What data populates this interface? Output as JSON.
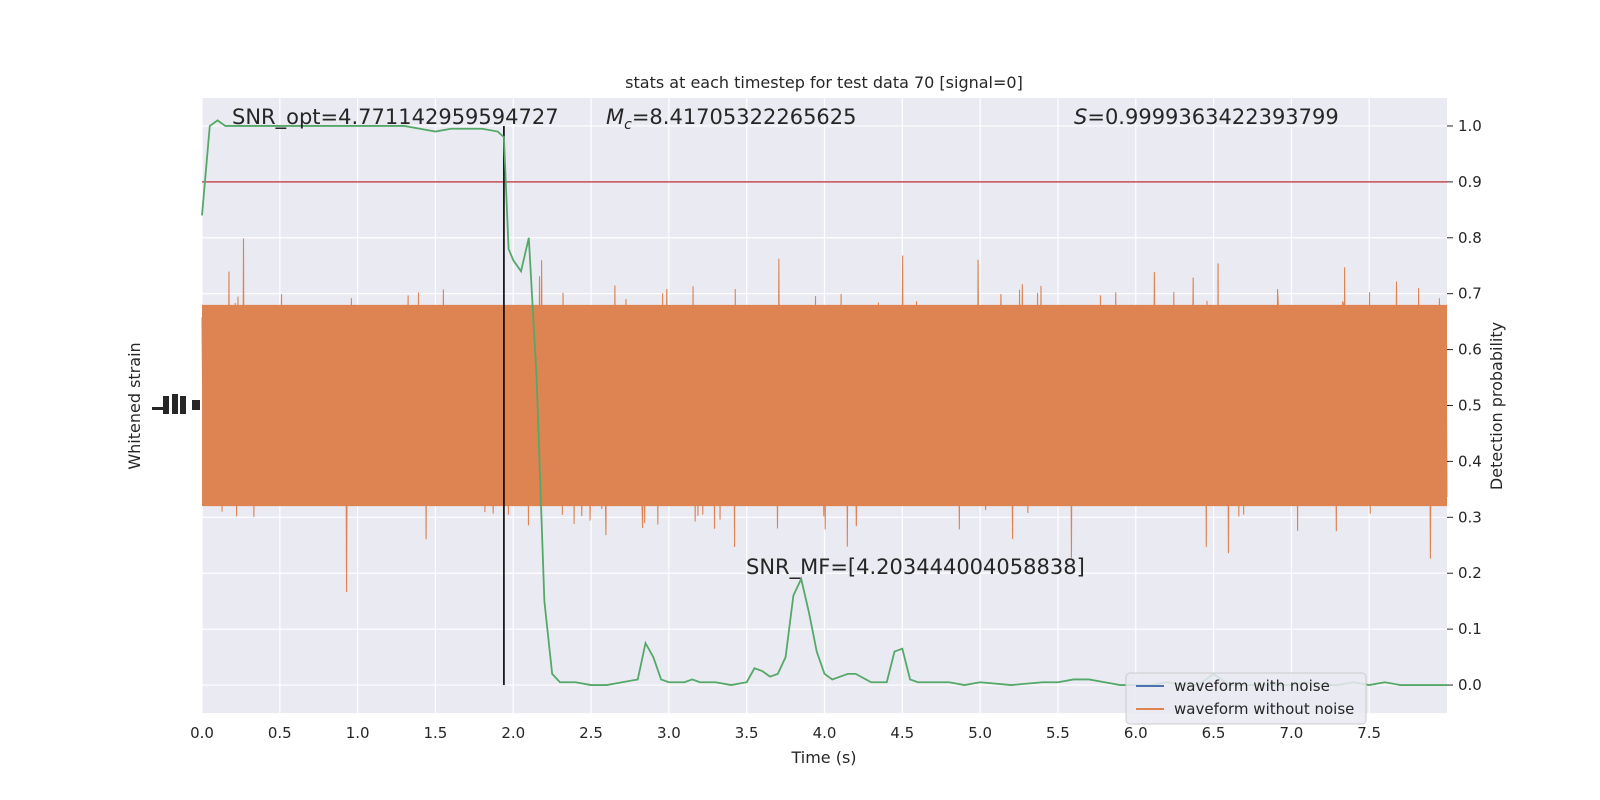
{
  "chart_data": {
    "type": "line",
    "title": "stats at each timestep for test data 70 [signal=0]",
    "xlabel": "Time (s)",
    "ylabel_left": "Whitened strain",
    "ylabel_right": "Detection probability",
    "xlim": [
      0,
      8
    ],
    "ylim_right": [
      -0.05,
      1.05
    ],
    "x_ticks": [
      "0.0",
      "0.5",
      "1.0",
      "1.5",
      "2.0",
      "2.5",
      "3.0",
      "3.5",
      "4.0",
      "4.5",
      "5.0",
      "5.5",
      "6.0",
      "6.5",
      "7.0",
      "7.5"
    ],
    "y_ticks_right": [
      "0.0",
      "0.1",
      "0.2",
      "0.3",
      "0.4",
      "0.5",
      "0.6",
      "0.7",
      "0.8",
      "0.9",
      "1.0"
    ],
    "grid": true,
    "legend_position": "lower-right",
    "legend": [
      {
        "label": "waveform with noise",
        "color": "#4c72b0"
      },
      {
        "label": "waveform without noise",
        "color": "#dd8452"
      }
    ],
    "annotations": {
      "snr_opt": "SNR_opt=4.771142959594727",
      "mc": "=8.41705322265625",
      "mc_symbol": "M",
      "mc_sub": "c",
      "s": "=0.9999363422393799",
      "s_symbol": "S",
      "snr_mf": "SNR_MF=[4.203444004058838]"
    },
    "threshold": 0.9,
    "marker_time": 1.94,
    "colors": {
      "probability": "#55a868",
      "threshold": "#c44e52",
      "marker": "#000000",
      "strain": "#dd8452"
    },
    "probability_series": {
      "name": "detection probability",
      "x": [
        0.0,
        0.05,
        0.1,
        0.15,
        0.2,
        0.25,
        0.3,
        0.35,
        0.4,
        0.5,
        0.6,
        0.7,
        0.8,
        0.9,
        1.0,
        1.1,
        1.2,
        1.3,
        1.4,
        1.5,
        1.6,
        1.7,
        1.8,
        1.9,
        1.94,
        1.97,
        2.0,
        2.05,
        2.1,
        2.15,
        2.2,
        2.25,
        2.3,
        2.35,
        2.4,
        2.5,
        2.6,
        2.7,
        2.8,
        2.85,
        2.9,
        2.95,
        3.0,
        3.05,
        3.1,
        3.15,
        3.2,
        3.3,
        3.4,
        3.5,
        3.55,
        3.6,
        3.65,
        3.7,
        3.75,
        3.8,
        3.85,
        3.9,
        3.95,
        4.0,
        4.05,
        4.1,
        4.15,
        4.2,
        4.3,
        4.4,
        4.45,
        4.5,
        4.55,
        4.6,
        4.65,
        4.7,
        4.8,
        4.9,
        5.0,
        5.2,
        5.4,
        5.5,
        5.6,
        5.7,
        5.8,
        5.9,
        6.0,
        6.1,
        6.2,
        6.3,
        6.4,
        6.5,
        6.6,
        6.7,
        6.8,
        6.9,
        7.0,
        7.1,
        7.2,
        7.3,
        7.4,
        7.5,
        7.6,
        7.7,
        7.8,
        7.9,
        8.0
      ],
      "y": [
        0.84,
        1.0,
        1.01,
        1.0,
        1.0,
        1.0,
        1.0,
        1.0,
        1.0,
        1.0,
        1.0,
        1.0,
        1.0,
        1.0,
        1.0,
        1.0,
        1.0,
        1.0,
        0.995,
        0.99,
        0.995,
        0.995,
        0.995,
        0.99,
        0.98,
        0.78,
        0.76,
        0.74,
        0.8,
        0.55,
        0.15,
        0.02,
        0.005,
        0.005,
        0.005,
        0.0,
        0.0,
        0.005,
        0.01,
        0.075,
        0.05,
        0.01,
        0.005,
        0.005,
        0.005,
        0.01,
        0.005,
        0.005,
        0.0,
        0.005,
        0.03,
        0.025,
        0.015,
        0.02,
        0.05,
        0.16,
        0.19,
        0.13,
        0.06,
        0.02,
        0.01,
        0.015,
        0.02,
        0.02,
        0.005,
        0.005,
        0.06,
        0.065,
        0.01,
        0.005,
        0.005,
        0.005,
        0.005,
        0.0,
        0.005,
        0.0,
        0.005,
        0.005,
        0.01,
        0.01,
        0.005,
        0.0,
        0.0,
        0.0,
        0.005,
        0.0,
        0.0,
        0.02,
        0.0,
        0.0,
        0.0,
        0.0,
        0.0,
        0.005,
        0.0,
        0.0,
        0.005,
        0.0,
        0.005,
        0.0,
        0.0,
        0.0,
        0.0
      ]
    }
  }
}
